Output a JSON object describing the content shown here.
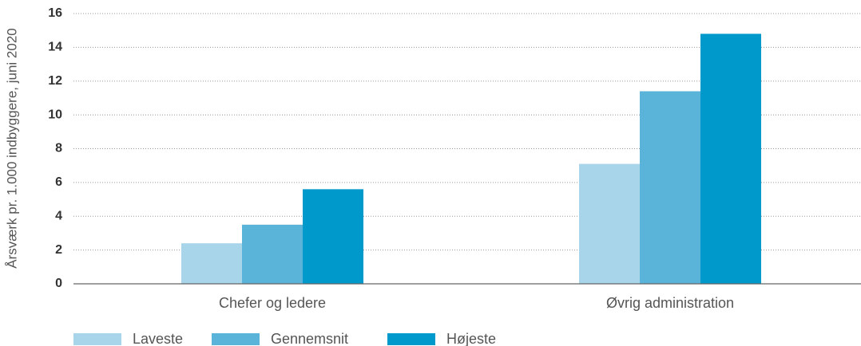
{
  "chart_data": {
    "type": "bar",
    "ylabel": "Årsværk pr. 1.000 indbyggere, juni 2020",
    "categories": [
      "Chefer og ledere",
      "Øvrig administration"
    ],
    "series": [
      {
        "name": "Laveste",
        "color": "#a8d5ea",
        "values": [
          2.4,
          7.1
        ]
      },
      {
        "name": "Gennemsnit",
        "color": "#5ab4da",
        "values": [
          3.5,
          11.4
        ]
      },
      {
        "name": "Højeste",
        "color": "#0099cc",
        "values": [
          5.6,
          14.8
        ]
      }
    ],
    "ylim": [
      0,
      16
    ],
    "yticks": [
      0,
      2,
      4,
      6,
      8,
      10,
      12,
      14,
      16
    ],
    "grid": true,
    "legend": "bottom-left"
  }
}
